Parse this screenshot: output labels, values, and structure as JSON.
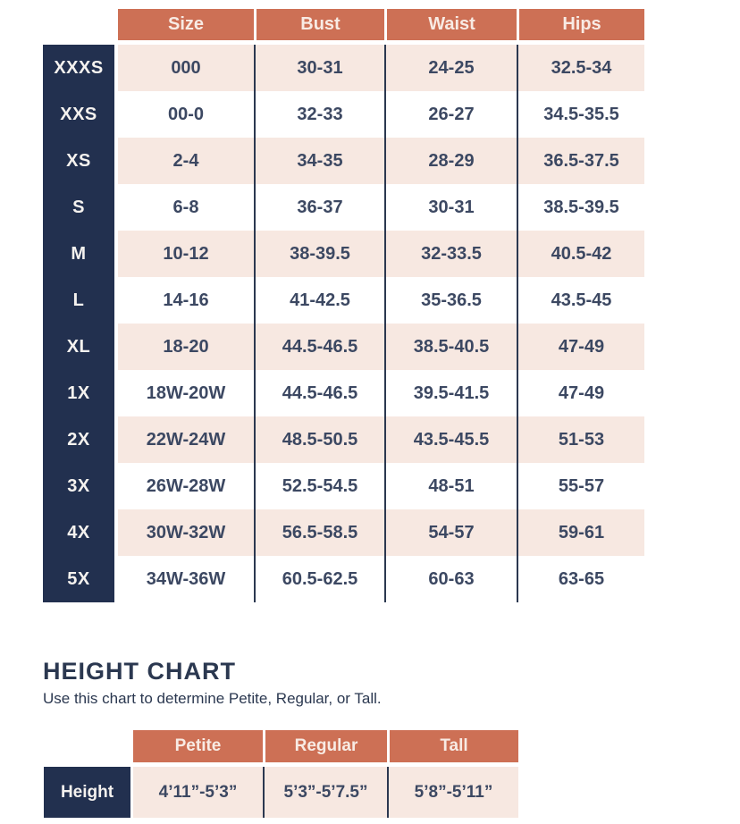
{
  "colors": {
    "accent_salmon": "#cd7055",
    "navy": "#22304f",
    "blush_pink": "#f7e8e1",
    "cell_text": "#3c4862",
    "header_text": "#f8ebe4"
  },
  "size_chart": {
    "headers": [
      "Size",
      "Bust",
      "Waist",
      "Hips"
    ],
    "rows": [
      {
        "label": "XXXS",
        "size": "000",
        "bust": "30-31",
        "waist": "24-25",
        "hips": "32.5-34"
      },
      {
        "label": "XXS",
        "size": "00-0",
        "bust": "32-33",
        "waist": "26-27",
        "hips": "34.5-35.5"
      },
      {
        "label": "XS",
        "size": "2-4",
        "bust": "34-35",
        "waist": "28-29",
        "hips": "36.5-37.5"
      },
      {
        "label": "S",
        "size": "6-8",
        "bust": "36-37",
        "waist": "30-31",
        "hips": "38.5-39.5"
      },
      {
        "label": "M",
        "size": "10-12",
        "bust": "38-39.5",
        "waist": "32-33.5",
        "hips": "40.5-42"
      },
      {
        "label": "L",
        "size": "14-16",
        "bust": "41-42.5",
        "waist": "35-36.5",
        "hips": "43.5-45"
      },
      {
        "label": "XL",
        "size": "18-20",
        "bust": "44.5-46.5",
        "waist": "38.5-40.5",
        "hips": "47-49"
      },
      {
        "label": "1X",
        "size": "18W-20W",
        "bust": "44.5-46.5",
        "waist": "39.5-41.5",
        "hips": "47-49"
      },
      {
        "label": "2X",
        "size": "22W-24W",
        "bust": "48.5-50.5",
        "waist": "43.5-45.5",
        "hips": "51-53"
      },
      {
        "label": "3X",
        "size": "26W-28W",
        "bust": "52.5-54.5",
        "waist": "48-51",
        "hips": "55-57"
      },
      {
        "label": "4X",
        "size": "30W-32W",
        "bust": "56.5-58.5",
        "waist": "54-57",
        "hips": "59-61"
      },
      {
        "label": "5X",
        "size": "34W-36W",
        "bust": "60.5-62.5",
        "waist": "60-63",
        "hips": "63-65"
      }
    ]
  },
  "height_chart": {
    "title": "HEIGHT CHART",
    "subtitle": "Use this chart to determine Petite, Regular, or Tall.",
    "headers": [
      "Petite",
      "Regular",
      "Tall"
    ],
    "row_label": "Height",
    "values": [
      "4’11”-5’3”",
      "5’3”-5’7.5”",
      "5’8”-5’11”"
    ]
  }
}
